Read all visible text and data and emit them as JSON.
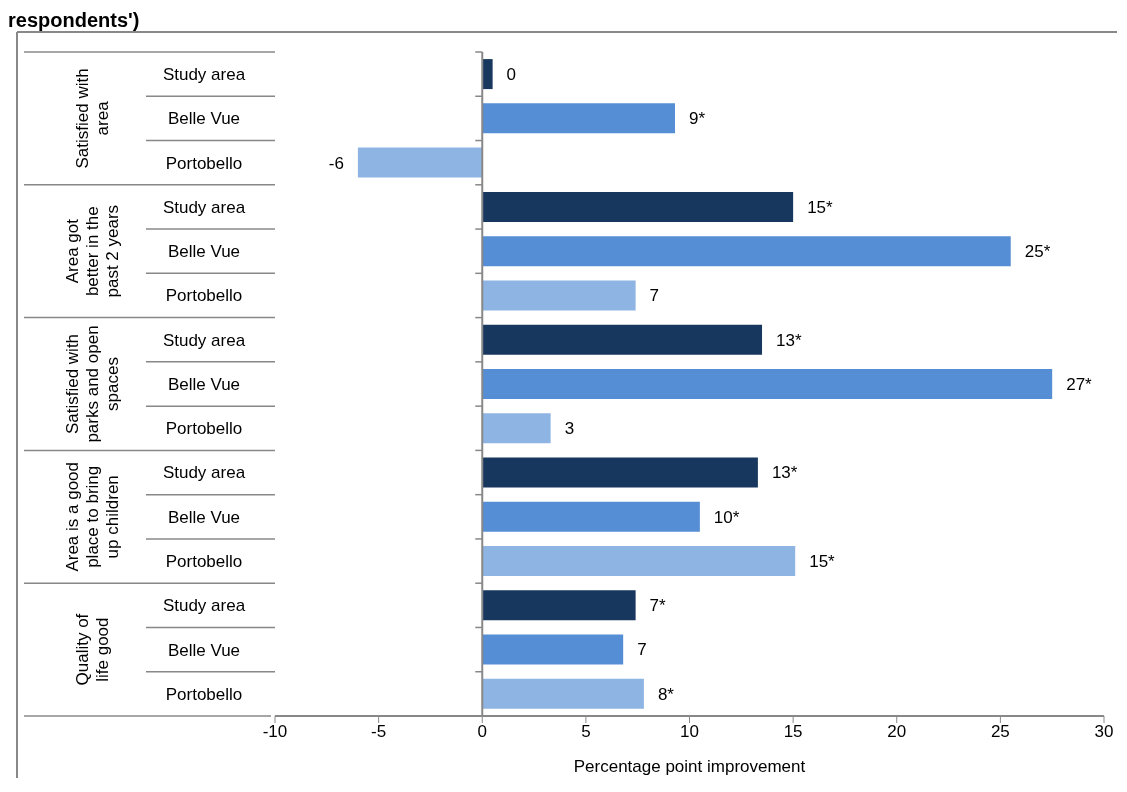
{
  "chart_data": {
    "type": "bar",
    "orientation": "horizontal",
    "title": "respondents')",
    "xlabel": "Percentage point improvement",
    "categories": [
      "Study area",
      "Belle Vue",
      "Portobello",
      "Study area",
      "Belle Vue",
      "Portobello",
      "Study area",
      "Belle Vue",
      "Portobello",
      "Study area",
      "Belle Vue",
      "Portobello",
      "Study area",
      "Belle Vue",
      "Portobello"
    ],
    "values": [
      0.5,
      9.3,
      -6,
      15,
      25.5,
      7.4,
      13.5,
      27.5,
      3.3,
      13.3,
      10.5,
      15.1,
      7.4,
      6.8,
      7.8
    ],
    "value_labels": [
      "0",
      "9*",
      "-6",
      "15*",
      "25*",
      "7",
      "13*",
      "27*",
      "3",
      "13*",
      "10*",
      "15*",
      "7*",
      "7",
      "8*"
    ],
    "colors": [
      "#17375e",
      "#558ed5",
      "#8eb4e3",
      "#17375e",
      "#558ed5",
      "#8eb4e3",
      "#17375e",
      "#558ed5",
      "#8eb4e3",
      "#17375e",
      "#558ed5",
      "#8eb4e3",
      "#17375e",
      "#558ed5",
      "#8eb4e3"
    ],
    "annotations": [
      "Satisfied with area",
      "Area got better in the past 2 years",
      "Satisfied with parks and open spaces",
      "Area is a good place to bring up children",
      "Quality of life good"
    ],
    "xlim": [
      -10,
      30
    ],
    "xticks": [
      -10,
      -5,
      0,
      5,
      10,
      15,
      20,
      25,
      30
    ]
  }
}
